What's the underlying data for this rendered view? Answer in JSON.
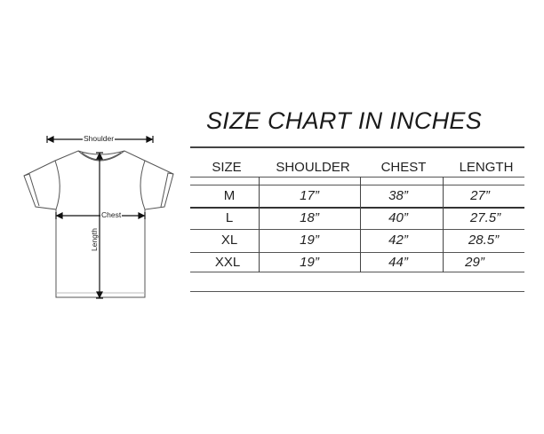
{
  "diagram": {
    "labels": {
      "shoulder": "Shoulder",
      "chest": "Chest",
      "length": "Length"
    }
  },
  "table": {
    "title": "SIZE CHART IN INCHES",
    "headers": [
      "SIZE",
      "SHOULDER",
      "CHEST",
      "LENGTH"
    ],
    "rows": [
      [
        "M",
        "17”",
        "38”",
        "27”"
      ],
      [
        "L",
        "18”",
        "40”",
        "27.5”"
      ],
      [
        "XL",
        "19”",
        "42”",
        "28.5”"
      ],
      [
        "XXL",
        "19”",
        "44”",
        "29”"
      ]
    ]
  }
}
